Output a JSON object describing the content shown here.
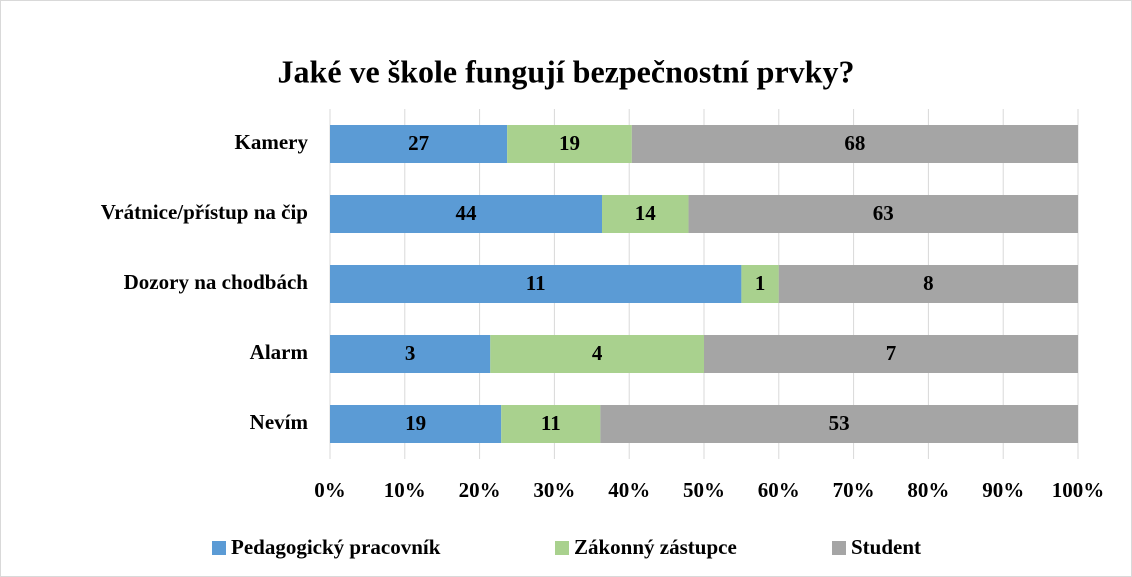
{
  "chart_data": {
    "type": "bar",
    "orientation": "horizontal",
    "stacked": "percent",
    "title": "Jaké ve škole fungují bezpečnostní prvky?",
    "categories": [
      "Kamery",
      "Vrátnice/přístup na čip",
      "Dozory na chodbách",
      "Alarm",
      "Nevím"
    ],
    "series": [
      {
        "name": "Pedagogický pracovník",
        "color": "#5b9bd5",
        "values": [
          27,
          44,
          11,
          3,
          19
        ]
      },
      {
        "name": "Zákonný zástupce",
        "color": "#a9d18e",
        "values": [
          19,
          14,
          1,
          4,
          11
        ]
      },
      {
        "name": "Student",
        "color": "#a5a5a5",
        "values": [
          68,
          63,
          8,
          7,
          53
        ]
      }
    ],
    "xlim": [
      0,
      100
    ],
    "xticks": [
      {
        "value": 0,
        "label": "0%"
      },
      {
        "value": 10,
        "label": "10%"
      },
      {
        "value": 20,
        "label": "20%"
      },
      {
        "value": 30,
        "label": "30%"
      },
      {
        "value": 40,
        "label": "40%"
      },
      {
        "value": 50,
        "label": "50%"
      },
      {
        "value": 60,
        "label": "60%"
      },
      {
        "value": 70,
        "label": "70%"
      },
      {
        "value": 80,
        "label": "80%"
      },
      {
        "value": 90,
        "label": "90%"
      },
      {
        "value": 100,
        "label": "100%"
      }
    ],
    "grid": true,
    "legend": "bottom"
  }
}
